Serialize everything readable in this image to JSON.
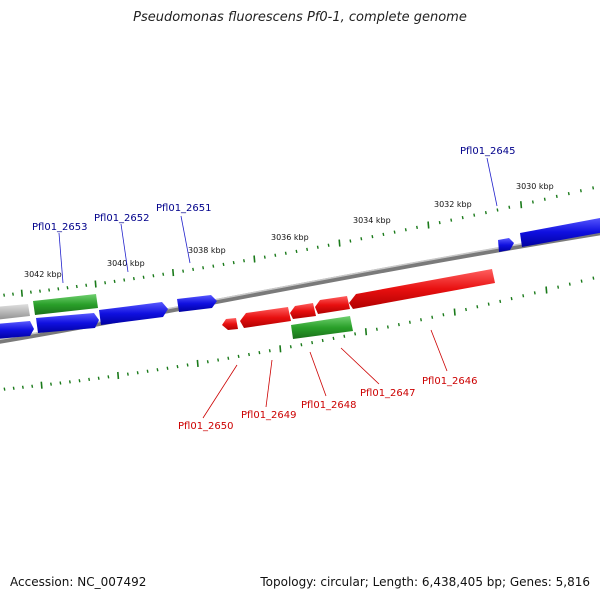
{
  "title": "Pseudomonas fluorescens Pf0-1, complete genome",
  "footer": {
    "accession": "Accession: NC_007492",
    "stats": "Topology: circular; Length: 6,438,405 bp; Genes: 5,816"
  },
  "colors": {
    "forward_gene": "#1010e0",
    "reverse_gene": "#e81010",
    "rna_gene": "#2aa02a",
    "pseudo_gene": "#b8b8b8",
    "backbone": "#808080",
    "tick": "#1a7a1a",
    "forward_label": "#00008b",
    "reverse_label": "#cc0000"
  },
  "scale_ticks": [
    {
      "label": "3030 kbp"
    },
    {
      "label": "3032 kbp"
    },
    {
      "label": "3034 kbp"
    },
    {
      "label": "3036 kbp"
    },
    {
      "label": "3038 kbp"
    },
    {
      "label": "3040 kbp"
    },
    {
      "label": "3042 kbp"
    }
  ],
  "forward_gene_labels": [
    {
      "name": "Pfl01_2645"
    },
    {
      "name": "Pfl01_2651"
    },
    {
      "name": "Pfl01_2652"
    },
    {
      "name": "Pfl01_2653"
    }
  ],
  "reverse_gene_labels": [
    {
      "name": "Pfl01_2646"
    },
    {
      "name": "Pfl01_2647"
    },
    {
      "name": "Pfl01_2648"
    },
    {
      "name": "Pfl01_2649"
    },
    {
      "name": "Pfl01_2650"
    }
  ]
}
